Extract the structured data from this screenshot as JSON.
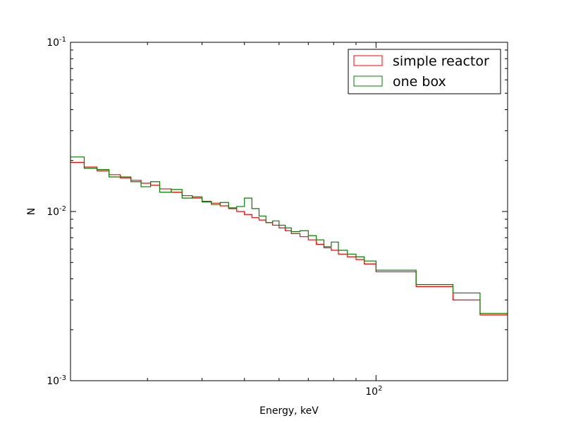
{
  "chart_data": {
    "type": "line",
    "style": "step-histogram",
    "xlabel": "Energy, keV",
    "ylabel": "N",
    "xscale": "log",
    "yscale": "log",
    "xlim": [
      20,
      200
    ],
    "ylim": [
      0.001,
      0.1
    ],
    "x_ticks": [
      {
        "base": "10",
        "exp": "2",
        "value": 100
      }
    ],
    "y_ticks": [
      {
        "base": "10",
        "exp": "-3",
        "value": 0.001
      },
      {
        "base": "10",
        "exp": "-2",
        "value": 0.01
      },
      {
        "base": "10",
        "exp": "-1",
        "value": 0.1
      }
    ],
    "grid": false,
    "legend_position": "top-right",
    "series": [
      {
        "name": "simple reactor",
        "color": "#ff0000",
        "bin_edges": [
          20,
          21.5,
          23,
          24.5,
          26,
          27.5,
          29,
          30.5,
          32,
          34,
          36,
          38,
          40,
          42,
          44,
          46,
          48,
          50,
          52,
          54,
          56,
          58,
          60,
          62,
          64,
          67,
          70,
          73,
          76,
          79,
          82,
          86,
          90,
          94,
          100,
          123.5,
          150,
          173,
          200
        ],
        "values": [
          0.0195,
          0.0183,
          0.0174,
          0.0165,
          0.0158,
          0.0153,
          0.0147,
          0.0143,
          0.0136,
          0.013,
          0.0124,
          0.012,
          0.0115,
          0.0112,
          0.0108,
          0.0104,
          0.01,
          0.0096,
          0.0092,
          0.0089,
          0.0086,
          0.0083,
          0.008,
          0.0077,
          0.0074,
          0.0071,
          0.0068,
          0.0064,
          0.0061,
          0.0059,
          0.0056,
          0.0054,
          0.0052,
          0.0049,
          0.0044,
          0.0036,
          0.003,
          0.00245
        ]
      },
      {
        "name": "one box",
        "color": "#008000",
        "bin_edges": [
          20,
          21.5,
          23,
          24.5,
          26,
          27.5,
          29,
          30.5,
          32,
          34,
          36,
          38,
          40,
          42,
          44,
          46,
          48,
          50,
          52,
          54,
          56,
          58,
          60,
          62,
          64,
          67,
          70,
          73,
          76,
          79,
          82,
          86,
          90,
          94,
          100,
          123.5,
          150,
          173,
          200
        ],
        "values": [
          0.021,
          0.018,
          0.0177,
          0.016,
          0.016,
          0.015,
          0.014,
          0.015,
          0.013,
          0.0135,
          0.012,
          0.0122,
          0.0114,
          0.011,
          0.0113,
          0.0105,
          0.0107,
          0.012,
          0.0104,
          0.0094,
          0.0086,
          0.0088,
          0.0083,
          0.008,
          0.0076,
          0.0077,
          0.0072,
          0.0068,
          0.0062,
          0.0066,
          0.0059,
          0.0056,
          0.0054,
          0.0051,
          0.0045,
          0.0037,
          0.0033,
          0.0025
        ]
      }
    ]
  }
}
